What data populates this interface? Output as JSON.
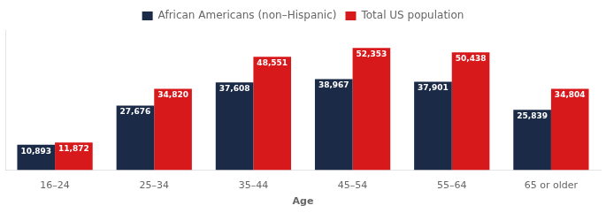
{
  "chart_data": {
    "type": "bar",
    "categories": [
      "16–24",
      "25–34",
      "35–44",
      "45–54",
      "55–64",
      "65 or older"
    ],
    "series": [
      {
        "name": "African Americans (non–Hispanic)",
        "color": "#1b2a47",
        "values": [
          10893,
          27676,
          37608,
          38967,
          37901,
          25839
        ],
        "value_labels": [
          "10,893",
          "27,676",
          "37,608",
          "38,967",
          "37,901",
          "25,839"
        ]
      },
      {
        "name": "Total US population",
        "color": "#d7191c",
        "values": [
          11872,
          34820,
          48551,
          52353,
          50438,
          34804
        ],
        "value_labels": [
          "11,872",
          "34,820",
          "48,551",
          "52,353",
          "50,438",
          "34,804"
        ]
      }
    ],
    "xlabel": "Age",
    "ylim": [
      0,
      60000
    ],
    "grid": false,
    "legend": "top",
    "data_labels": true,
    "tick_labels": "x"
  }
}
